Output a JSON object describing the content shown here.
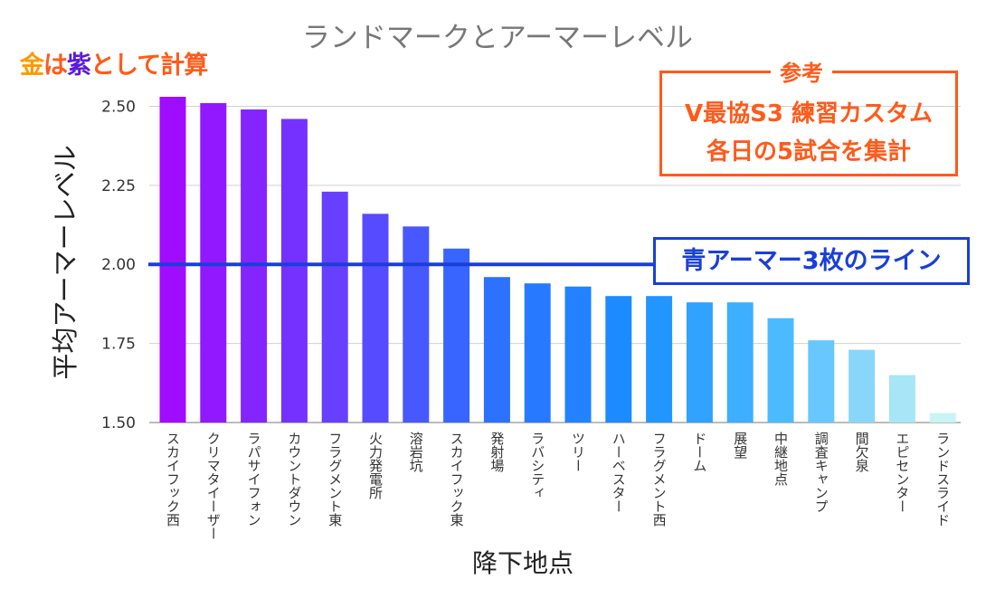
{
  "chart_data": {
    "type": "bar",
    "title": "ランドマークとアーマーレベル",
    "xlabel": "降下地点",
    "ylabel": "平均アーマーレベル",
    "ylim": [
      1.5,
      2.55
    ],
    "yticks": [
      "1.50",
      "1.75",
      "2.00",
      "2.25",
      "2.50"
    ],
    "grid": true,
    "categories": [
      "スカイフック西",
      "クリマタイーザー",
      "ラパサイフォン",
      "カウントダウン",
      "フラグメント東",
      "火力発電所",
      "溶岩坑",
      "スカイフック東",
      "発射場",
      "ラバシティ",
      "ツリー",
      "ハーベスター",
      "フラグメント西",
      "ドーム",
      "展望",
      "中継地点",
      "調査キャンプ",
      "間欠泉",
      "エピセンター",
      "ランドスライド"
    ],
    "values": [
      2.53,
      2.51,
      2.49,
      2.46,
      2.23,
      2.16,
      2.12,
      2.05,
      1.96,
      1.94,
      1.93,
      1.9,
      1.9,
      1.88,
      1.88,
      1.83,
      1.76,
      1.73,
      1.65,
      1.53
    ],
    "reference_line": {
      "value": 2.0,
      "label": "青アーマー3枚のライン",
      "color": "#1a3fd8"
    }
  },
  "annotations": {
    "gold_char": "金",
    "ha_char": "は",
    "purple_char": "紫",
    "rest_text": "として計算",
    "ref_title": "参考",
    "ref_line1": "V最協S3 練習カスタム",
    "ref_line2": "各日の5試合を集計"
  },
  "colors": {
    "gold": "#ff9900",
    "purple": "#5a1ad8",
    "orange": "#ff5a1a",
    "blue": "#1a3fd8",
    "bar_gradient": [
      "#a00cff",
      "#6a3cff",
      "#2f6dff",
      "#1a8fff",
      "#4fbcff",
      "#c8f4f4"
    ]
  }
}
